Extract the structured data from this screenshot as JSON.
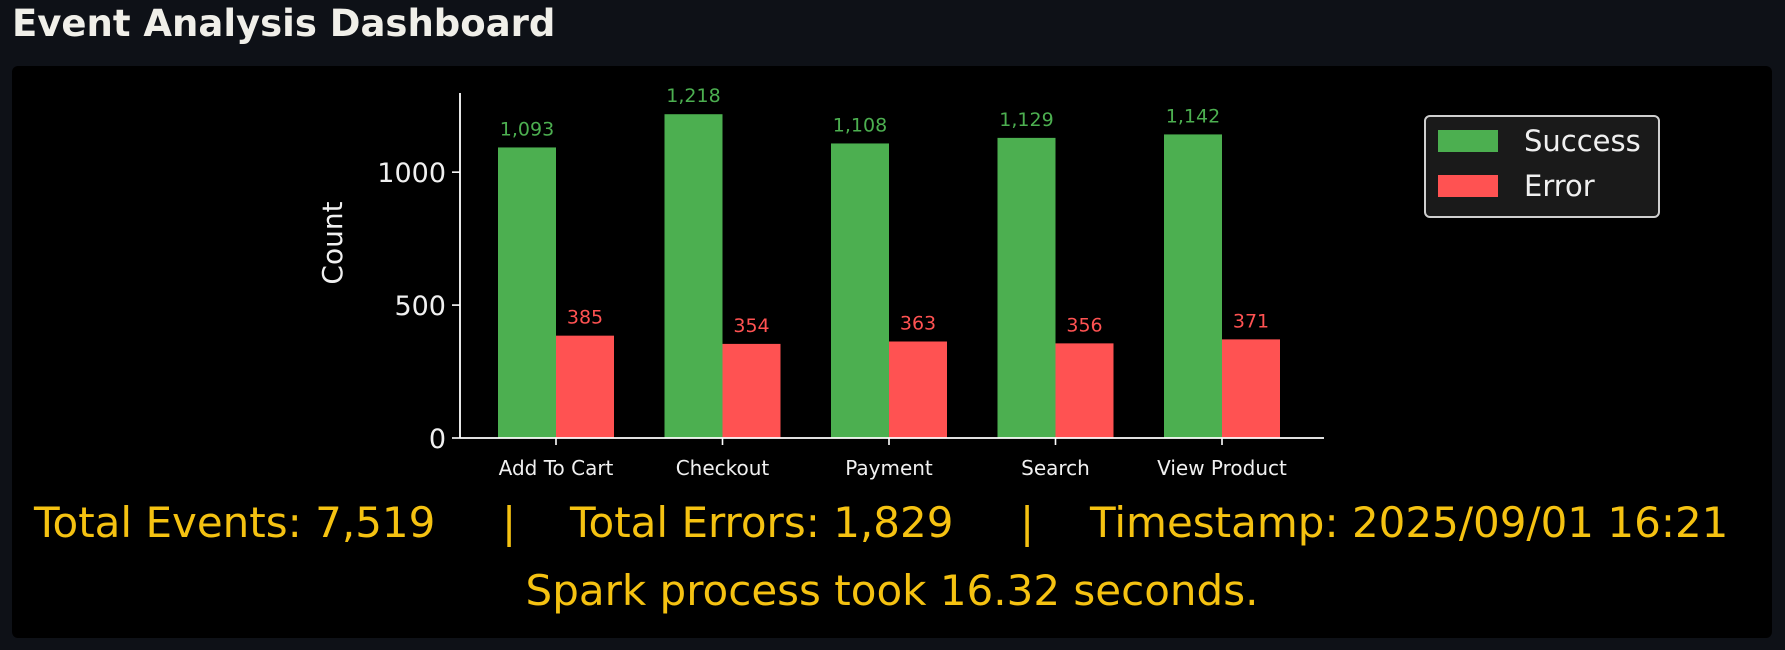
{
  "app": {
    "title": "Event Analysis Dashboard"
  },
  "chart_data": {
    "type": "bar",
    "categories": [
      "Add To Cart",
      "Checkout",
      "Payment",
      "Search",
      "View Product"
    ],
    "series": [
      {
        "name": "Success",
        "values": [
          1093,
          1218,
          1108,
          1129,
          1142
        ],
        "color": "#4caf50",
        "labels": [
          "1,093",
          "1,218",
          "1,108",
          "1,129",
          "1,142"
        ]
      },
      {
        "name": "Error",
        "values": [
          385,
          354,
          363,
          356,
          371
        ],
        "color": "#ff5252",
        "labels": [
          "385",
          "354",
          "363",
          "356",
          "371"
        ]
      }
    ],
    "title": "",
    "xlabel": "",
    "ylabel": "Count",
    "ylim": [
      0,
      1279
    ],
    "yticks": [
      0,
      500,
      1000
    ],
    "ytick_labels": [
      "0",
      "500",
      "1000"
    ],
    "grid": false,
    "legend_position": "top-right",
    "background": "#000000",
    "axis_color": "#ffffff",
    "label_color": "#f0f0f0"
  },
  "stats": {
    "total_events": "Total Events: 7,519",
    "separator": "|",
    "total_errors": "Total Errors: 1,829",
    "timestamp": "Timestamp: 2025/09/01 16:21",
    "text_color": "#f5c211"
  },
  "footer": {
    "process_time": "Spark process took 16.32 seconds."
  }
}
